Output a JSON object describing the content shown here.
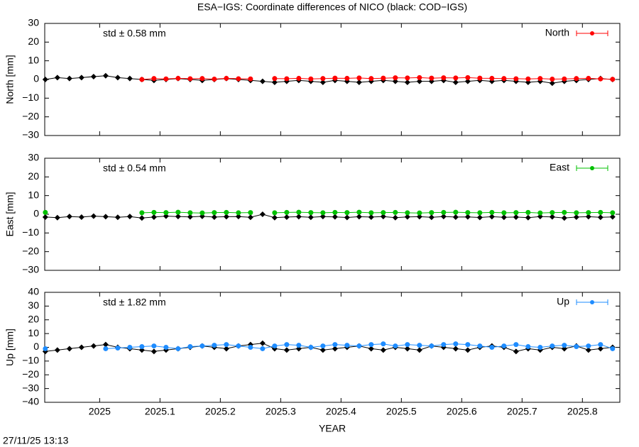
{
  "title": "ESA−IGS: Coordinate differences of NICO (black: COD−IGS)",
  "timestamp": "27/11/25 13:13",
  "chart_data": [
    {
      "type": "line",
      "ylabel": "North [mm]",
      "annotation": "std ± 0.58 mm",
      "legend": "top-right",
      "xlim": [
        2024.909,
        2025.862
      ],
      "xticks": [
        2025,
        2025.1,
        2025.2,
        2025.3,
        2025.4,
        2025.5,
        2025.6,
        2025.7,
        2025.8
      ],
      "ylim": [
        -30,
        30
      ],
      "yticks": [
        {
          "value": -30,
          "label": "−30"
        },
        {
          "value": -20,
          "label": "−20"
        },
        {
          "value": -10,
          "label": "−10"
        },
        0,
        10,
        20,
        30
      ],
      "x": [
        2024.91,
        2024.93,
        2024.95,
        2024.97,
        2024.99,
        2025.01,
        2025.03,
        2025.05,
        2025.07,
        2025.09,
        2025.11,
        2025.13,
        2025.15,
        2025.17,
        2025.19,
        2025.21,
        2025.23,
        2025.25,
        2025.27,
        2025.29,
        2025.31,
        2025.33,
        2025.35,
        2025.37,
        2025.39,
        2025.41,
        2025.43,
        2025.45,
        2025.47,
        2025.49,
        2025.51,
        2025.53,
        2025.55,
        2025.57,
        2025.59,
        2025.61,
        2025.63,
        2025.65,
        2025.67,
        2025.69,
        2025.71,
        2025.73,
        2025.75,
        2025.77,
        2025.79,
        2025.81,
        2025.83,
        2025.85
      ],
      "series": [
        {
          "color": "#000000",
          "values": [
            0,
            1,
            0.5,
            1,
            1.5,
            2,
            1,
            0.5,
            0,
            -0.5,
            0,
            0.5,
            0,
            -0.5,
            0,
            0.5,
            0,
            -0.5,
            -1,
            -1.5,
            -1,
            -0.5,
            -1,
            -1.5,
            -0.5,
            -1,
            -1.5,
            -1,
            -0.5,
            -1,
            -1.5,
            -1,
            -1,
            -0.5,
            -1.5,
            -1,
            -0.5,
            -1,
            -0.5,
            -1,
            -1.5,
            -1,
            -2,
            -1,
            -0.5,
            0,
            0.5,
            0
          ]
        },
        {
          "name": "North",
          "color": "#ff0000",
          "values": [
            null,
            null,
            null,
            null,
            null,
            null,
            null,
            null,
            0,
            0.5,
            0.3,
            0.6,
            0.4,
            0.5,
            0.2,
            0.6,
            0.4,
            0.3,
            null,
            0.5,
            0.4,
            0.6,
            0.3,
            0.5,
            0.7,
            0.6,
            0.8,
            0.5,
            0.7,
            0.9,
            0.8,
            1,
            0.7,
            0.9,
            0.8,
            1,
            0.7,
            0.6,
            0.5,
            0.4,
            0.3,
            0.5,
            0.2,
            0.3,
            0.5,
            0.6,
            0.3,
            0.1
          ]
        }
      ]
    },
    {
      "type": "line",
      "ylabel": "East [mm]",
      "annotation": "std ± 0.54 mm",
      "legend": "top-right",
      "xlim": [
        2024.909,
        2025.862
      ],
      "xticks": [
        2025,
        2025.1,
        2025.2,
        2025.3,
        2025.4,
        2025.5,
        2025.6,
        2025.7,
        2025.8
      ],
      "ylim": [
        -30,
        30
      ],
      "yticks": [
        {
          "value": -30,
          "label": "−30"
        },
        {
          "value": -20,
          "label": "−20"
        },
        {
          "value": -10,
          "label": "−10"
        },
        0,
        10,
        20,
        30
      ],
      "x": [
        2024.91,
        2024.93,
        2024.95,
        2024.97,
        2024.99,
        2025.01,
        2025.03,
        2025.05,
        2025.07,
        2025.09,
        2025.11,
        2025.13,
        2025.15,
        2025.17,
        2025.19,
        2025.21,
        2025.23,
        2025.25,
        2025.27,
        2025.29,
        2025.31,
        2025.33,
        2025.35,
        2025.37,
        2025.39,
        2025.41,
        2025.43,
        2025.45,
        2025.47,
        2025.49,
        2025.51,
        2025.53,
        2025.55,
        2025.57,
        2025.59,
        2025.61,
        2025.63,
        2025.65,
        2025.67,
        2025.69,
        2025.71,
        2025.73,
        2025.75,
        2025.77,
        2025.79,
        2025.81,
        2025.83,
        2025.85
      ],
      "series": [
        {
          "color": "#000000",
          "values": [
            -1.5,
            -1.8,
            -1.2,
            -1.5,
            -1,
            -1.3,
            -1.6,
            -1.2,
            -2,
            -1.5,
            -1,
            -1.2,
            -1.4,
            -1.1,
            -1.5,
            -1.3,
            -1.2,
            -1.6,
            0,
            -1.8,
            -1.5,
            -1.3,
            -1.6,
            -1.2,
            -1.4,
            -1.7,
            -1.3,
            -1.5,
            -1.2,
            -1.8,
            -1.4,
            -1.3,
            -1.6,
            -1.2,
            -1.5,
            -1.4,
            -1.7,
            -1.3,
            -1.6,
            -1.5,
            -1.8,
            -1.2,
            -1.4,
            -2,
            -1.5,
            -1.3,
            -1.6,
            -1.4
          ]
        },
        {
          "name": "East",
          "color": "#00c000",
          "values": [
            1,
            null,
            null,
            null,
            null,
            null,
            null,
            null,
            0.8,
            1,
            0.9,
            1.1,
            0.8,
            0.7,
            0.9,
            1,
            0.8,
            0.9,
            null,
            0.8,
            1,
            1.1,
            0.9,
            0.8,
            1,
            0.9,
            1.1,
            0.8,
            0.9,
            1,
            0.8,
            0.7,
            0.9,
            1,
            1.1,
            0.9,
            0.8,
            1,
            0.8,
            0.9,
            1,
            0.7,
            0.9,
            1,
            0.8,
            0.9,
            1,
            0.8
          ]
        }
      ]
    },
    {
      "type": "line",
      "ylabel": "Up [mm]",
      "xlabel": "YEAR",
      "annotation": "std ± 1.82 mm",
      "legend": "top-right",
      "xlim": [
        2024.909,
        2025.862
      ],
      "xticks": [
        2025,
        2025.1,
        2025.2,
        2025.3,
        2025.4,
        2025.5,
        2025.6,
        2025.7,
        2025.8
      ],
      "ylim": [
        -40,
        40
      ],
      "yticks": [
        {
          "value": -40,
          "label": "−40"
        },
        {
          "value": -30,
          "label": "−30"
        },
        {
          "value": -20,
          "label": "−20"
        },
        {
          "value": -10,
          "label": "−10"
        },
        0,
        10,
        20,
        30,
        40
      ],
      "x": [
        2024.91,
        2024.93,
        2024.95,
        2024.97,
        2024.99,
        2025.01,
        2025.03,
        2025.05,
        2025.07,
        2025.09,
        2025.11,
        2025.13,
        2025.15,
        2025.17,
        2025.19,
        2025.21,
        2025.23,
        2025.25,
        2025.27,
        2025.29,
        2025.31,
        2025.33,
        2025.35,
        2025.37,
        2025.39,
        2025.41,
        2025.43,
        2025.45,
        2025.47,
        2025.49,
        2025.51,
        2025.53,
        2025.55,
        2025.57,
        2025.59,
        2025.61,
        2025.63,
        2025.65,
        2025.67,
        2025.69,
        2025.71,
        2025.73,
        2025.75,
        2025.77,
        2025.79,
        2025.81,
        2025.83,
        2025.85
      ],
      "series": [
        {
          "color": "#000000",
          "values": [
            -3,
            -2,
            -1,
            0,
            1,
            2,
            0,
            -1,
            -2,
            -3,
            -2,
            -1,
            0,
            1,
            0,
            -1,
            1,
            2,
            3,
            -1,
            -2,
            -1,
            0,
            -2,
            -1,
            0,
            1,
            -1,
            -2,
            0,
            -1,
            -2,
            1,
            0,
            -1,
            -2,
            0,
            1,
            0,
            -3,
            -1,
            -2,
            0,
            -1,
            1,
            -2,
            -1,
            0
          ]
        },
        {
          "name": "Up",
          "color": "#1e8cff",
          "values": [
            -1,
            null,
            null,
            null,
            null,
            -1,
            -0.5,
            0,
            0.5,
            1,
            0,
            -1,
            0.5,
            1,
            1.5,
            2,
            1,
            0,
            -1,
            1,
            2,
            1.5,
            0,
            1,
            2,
            1.5,
            1,
            2,
            2.5,
            1,
            2,
            1.5,
            1,
            2,
            2.5,
            2,
            1,
            0,
            1,
            2,
            0.5,
            0,
            1,
            1.5,
            0.5,
            1,
            2,
            -1
          ]
        }
      ]
    }
  ]
}
